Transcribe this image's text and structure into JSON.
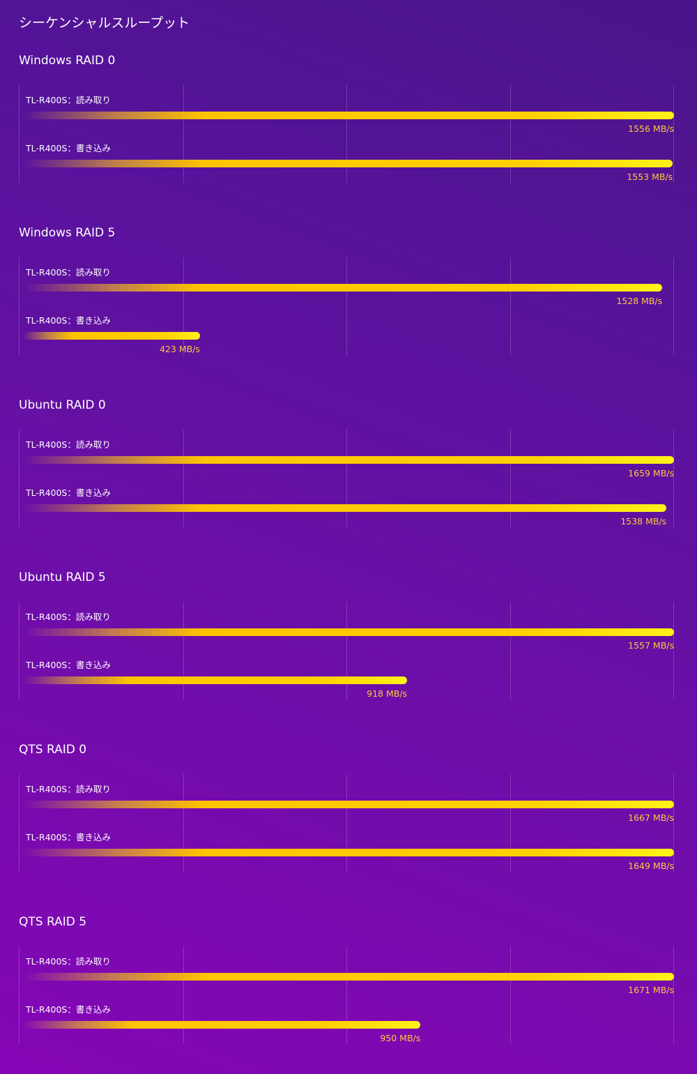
{
  "page_title": "シーケンシャルスループット",
  "colors": {
    "background_start": "#8506b6",
    "background_end": "#4b1488",
    "bar_start": "#ffc400",
    "bar_end": "#fff21a",
    "value_text": "#ffc93c",
    "gridline": "rgba(255,255,255,0.18)"
  },
  "chart_data": [
    {
      "type": "bar",
      "orientation": "horizontal",
      "title": "Windows RAID 0",
      "unit": "MB/s",
      "grid": true,
      "categories": [
        "TL-R400S：読み取り",
        "TL-R400S：書き込み"
      ],
      "values": [
        1556,
        1553
      ],
      "value_labels": [
        "1556 MB/s",
        "1553 MB/s"
      ]
    },
    {
      "type": "bar",
      "orientation": "horizontal",
      "title": "Windows RAID 5",
      "unit": "MB/s",
      "grid": true,
      "categories": [
        "TL-R400S：読み取り",
        "TL-R400S：書き込み"
      ],
      "values": [
        1528,
        423
      ],
      "value_labels": [
        "1528 MB/s",
        "423 MB/s"
      ]
    },
    {
      "type": "bar",
      "orientation": "horizontal",
      "title": "Ubuntu RAID 0",
      "unit": "MB/s",
      "grid": true,
      "categories": [
        "TL-R400S：読み取り",
        "TL-R400S：書き込み"
      ],
      "values": [
        1659,
        1538
      ],
      "value_labels": [
        "1659 MB/s",
        "1538 MB/s"
      ]
    },
    {
      "type": "bar",
      "orientation": "horizontal",
      "title": "Ubuntu RAID 5",
      "unit": "MB/s",
      "grid": true,
      "categories": [
        "TL-R400S：読み取り",
        "TL-R400S：書き込み"
      ],
      "values": [
        1557,
        918
      ],
      "value_labels": [
        "1557 MB/s",
        "918 MB/s"
      ]
    },
    {
      "type": "bar",
      "orientation": "horizontal",
      "title": "QTS RAID 0",
      "unit": "MB/s",
      "grid": true,
      "categories": [
        "TL-R400S：読み取り",
        "TL-R400S：書き込み"
      ],
      "values": [
        1667,
        1649
      ],
      "value_labels": [
        "1667 MB/s",
        "1649 MB/s"
      ]
    },
    {
      "type": "bar",
      "orientation": "horizontal",
      "title": "QTS RAID 5",
      "unit": "MB/s",
      "grid": true,
      "categories": [
        "TL-R400S：読み取り",
        "TL-R400S：書き込み"
      ],
      "values": [
        1671,
        950
      ],
      "value_labels": [
        "1671 MB/s",
        "950 MB/s"
      ]
    }
  ]
}
